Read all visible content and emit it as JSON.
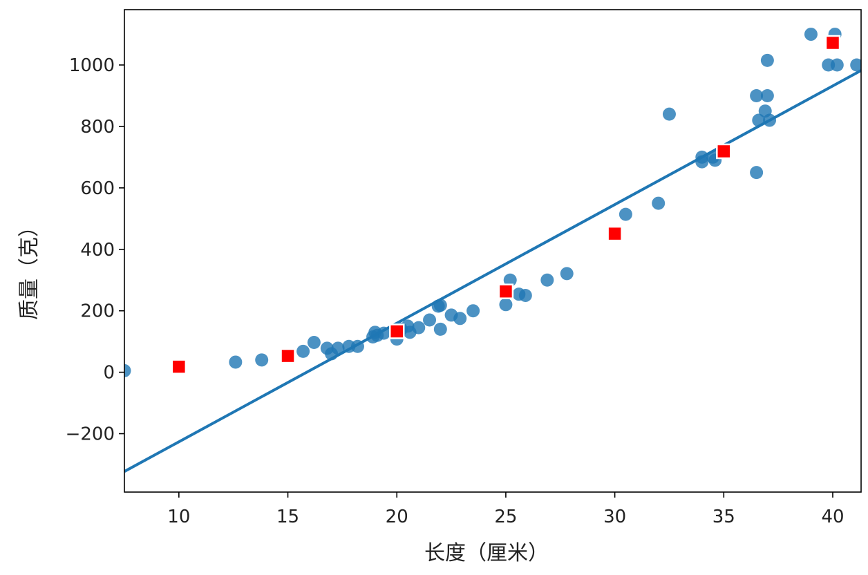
{
  "chart_data": {
    "type": "scatter",
    "title": "",
    "xlabel": "长度（厘米）",
    "ylabel": "质量（克）",
    "xlim": [
      7.5,
      41.3
    ],
    "ylim": [
      -390,
      1180
    ],
    "x_ticks": [
      10,
      15,
      20,
      25,
      30,
      35,
      40
    ],
    "y_ticks": [
      -200,
      0,
      200,
      400,
      600,
      800,
      1000
    ],
    "x_tick_labels": [
      "10",
      "15",
      "20",
      "25",
      "30",
      "35",
      "40"
    ],
    "y_tick_labels": [
      "−200",
      "0",
      "200",
      "400",
      "600",
      "800",
      "1000"
    ],
    "grid": false,
    "legend": "none",
    "series": [
      {
        "kind": "scatter",
        "color": "#1f77b4",
        "marker": "circle",
        "points": [
          [
            7.5,
            5
          ],
          [
            12.6,
            33
          ],
          [
            13.8,
            40
          ],
          [
            15.7,
            68
          ],
          [
            16.2,
            97
          ],
          [
            16.8,
            78
          ],
          [
            17.0,
            60
          ],
          [
            17.3,
            78
          ],
          [
            17.8,
            84
          ],
          [
            18.2,
            84
          ],
          [
            18.9,
            115
          ],
          [
            19.0,
            130
          ],
          [
            19.1,
            120
          ],
          [
            19.4,
            127
          ],
          [
            20.0,
            108
          ],
          [
            20.2,
            140
          ],
          [
            20.5,
            150
          ],
          [
            20.6,
            130
          ],
          [
            21.0,
            145
          ],
          [
            21.5,
            170
          ],
          [
            21.9,
            215
          ],
          [
            22.0,
            218
          ],
          [
            22.0,
            140
          ],
          [
            22.5,
            186
          ],
          [
            22.9,
            175
          ],
          [
            23.5,
            200
          ],
          [
            25.0,
            220
          ],
          [
            25.2,
            300
          ],
          [
            25.6,
            254
          ],
          [
            25.9,
            250
          ],
          [
            26.9,
            300
          ],
          [
            27.8,
            321
          ],
          [
            30.5,
            514
          ],
          [
            32.0,
            550
          ],
          [
            32.5,
            840
          ],
          [
            34.0,
            685
          ],
          [
            34.0,
            700
          ],
          [
            34.5,
            700
          ],
          [
            34.6,
            690
          ],
          [
            35.0,
            720
          ],
          [
            36.5,
            900
          ],
          [
            36.5,
            650
          ],
          [
            36.6,
            820
          ],
          [
            36.9,
            850
          ],
          [
            37.0,
            900
          ],
          [
            37.0,
            1015
          ],
          [
            37.1,
            820
          ],
          [
            39.0,
            1100
          ],
          [
            39.8,
            1000
          ],
          [
            40.1,
            1100
          ],
          [
            40.2,
            1000
          ],
          [
            41.1,
            1000
          ]
        ]
      },
      {
        "kind": "line",
        "color": "#1f77b4",
        "points": [
          [
            7.5,
            -323
          ],
          [
            41.3,
            982
          ]
        ]
      },
      {
        "kind": "scatter",
        "color": "#ff0000",
        "marker": "square",
        "points": [
          [
            10,
            18
          ],
          [
            15,
            53
          ],
          [
            20,
            133
          ],
          [
            25,
            263
          ],
          [
            30,
            451
          ],
          [
            35,
            719
          ],
          [
            40,
            1072
          ]
        ]
      }
    ]
  }
}
